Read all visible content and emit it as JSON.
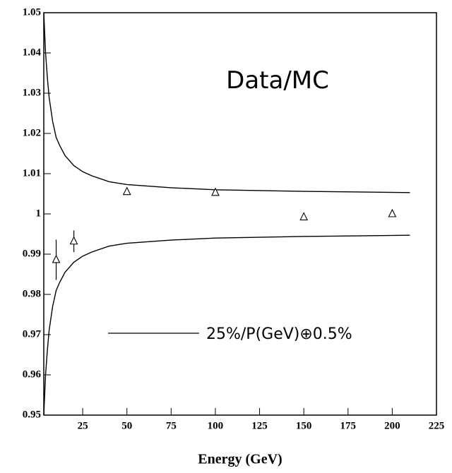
{
  "chart_data": {
    "type": "scatter",
    "xlabel": "Energy (GeV)",
    "annotation": "Data/MC",
    "xlim": [
      3,
      225
    ],
    "ylim": [
      0.95,
      1.05
    ],
    "xticks": [
      25,
      50,
      75,
      100,
      125,
      150,
      175,
      200,
      225
    ],
    "yticks": [
      0.95,
      0.96,
      0.97,
      0.98,
      0.99,
      1,
      1.01,
      1.02,
      1.03,
      1.04,
      1.05
    ],
    "points": {
      "x": [
        10,
        20,
        50,
        100,
        150,
        200
      ],
      "values": [
        0.9886,
        0.9932,
        1.0055,
        1.0053,
        0.9992,
        1.0
      ],
      "errors": [
        0.005,
        0.0027,
        null,
        null,
        null,
        null
      ],
      "color": "#000000"
    },
    "band": {
      "name": "25%/P(GeV)⊕0.5%",
      "color": "#000000",
      "x": [
        3,
        4,
        5,
        6,
        8,
        10,
        12,
        15,
        20,
        25,
        30,
        40,
        50,
        75,
        100,
        150,
        210
      ],
      "upper": [
        1.05,
        1.04,
        1.034,
        1.029,
        1.023,
        1.019,
        1.017,
        1.0145,
        1.012,
        1.0105,
        1.0095,
        1.008,
        1.0073,
        1.0065,
        1.006,
        1.0056,
        1.0053
      ],
      "lower": [
        0.95,
        0.96,
        0.966,
        0.971,
        0.977,
        0.981,
        0.983,
        0.9855,
        0.988,
        0.9895,
        0.9905,
        0.992,
        0.9927,
        0.9935,
        0.994,
        0.9944,
        0.9947
      ]
    }
  }
}
